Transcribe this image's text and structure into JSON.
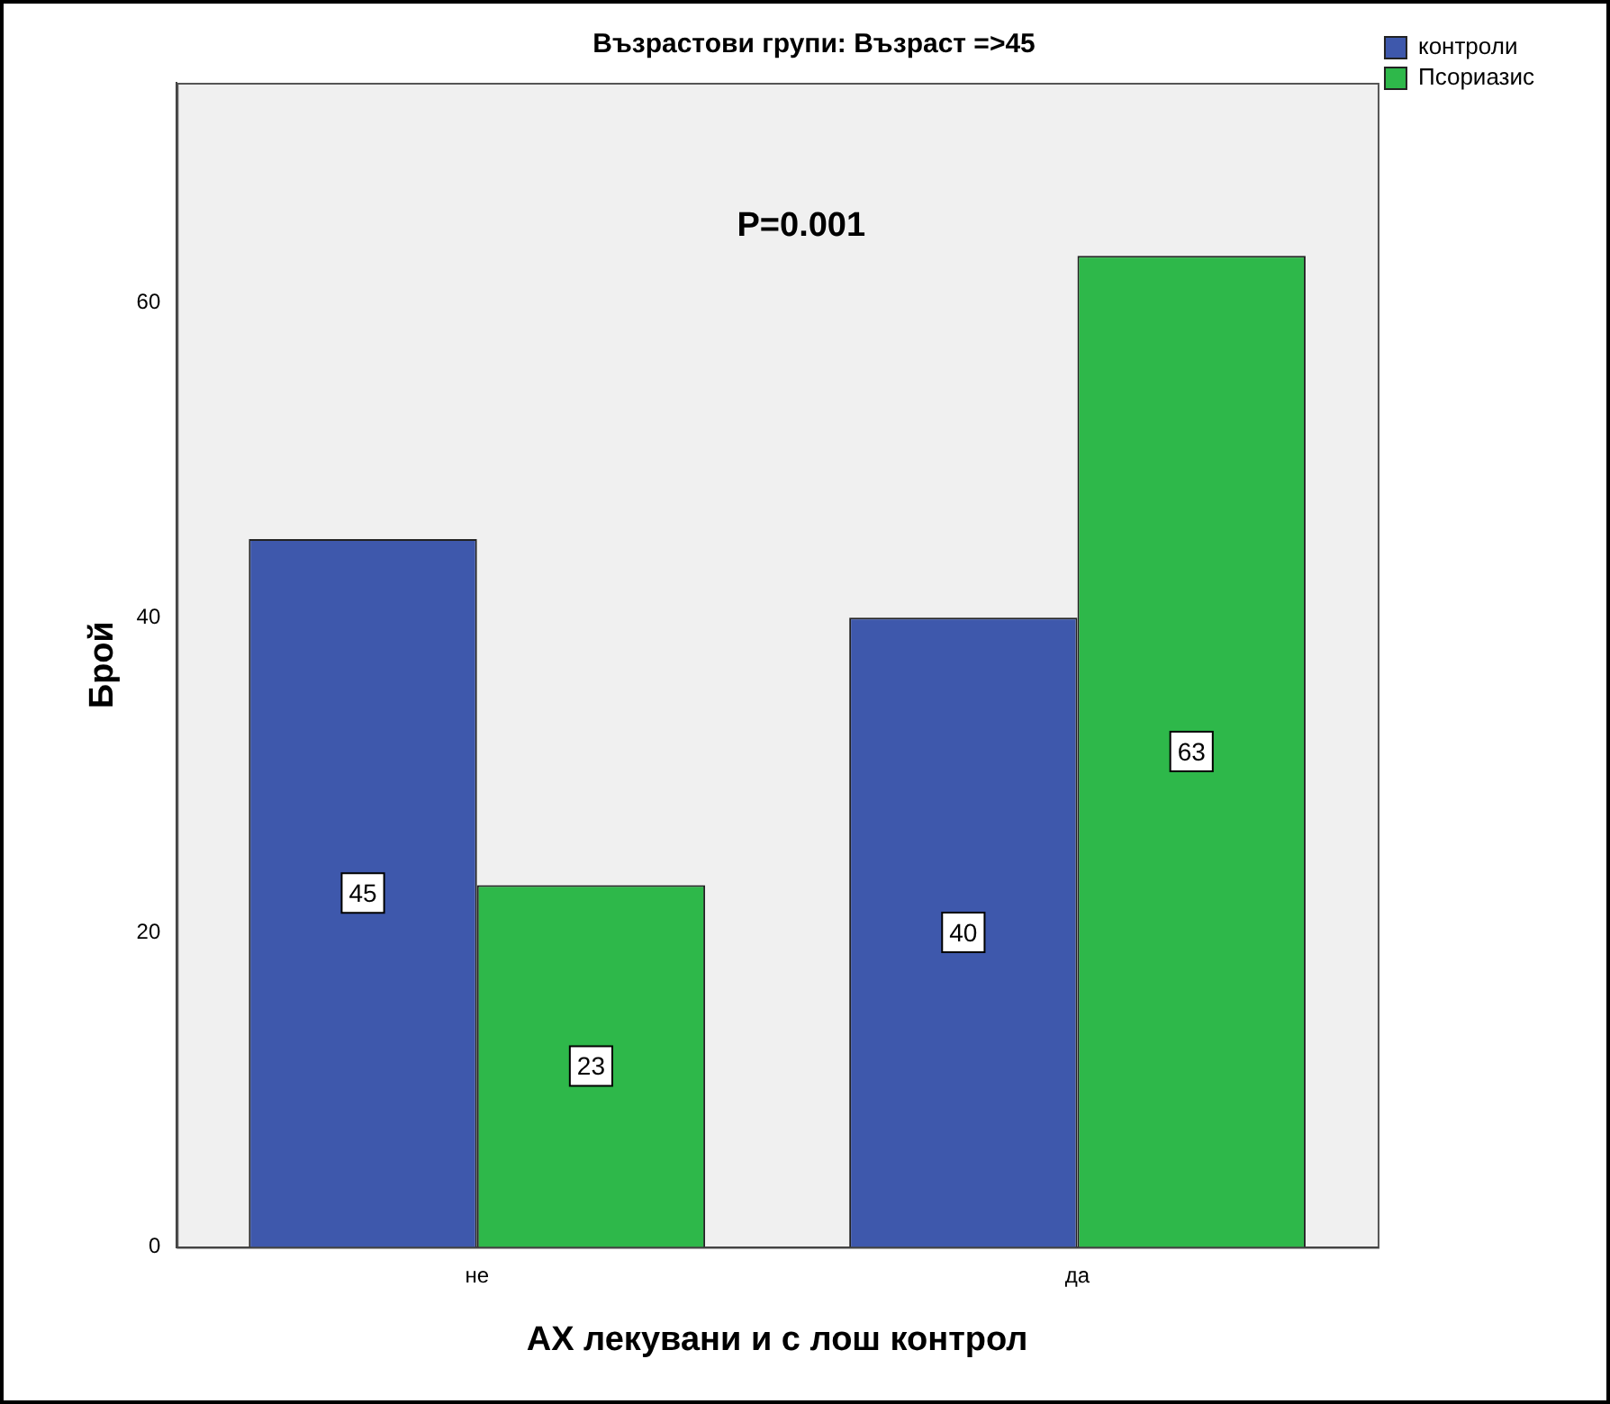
{
  "chart_data": {
    "type": "bar",
    "title": "Възрастови групи: Възраст =>45",
    "xlabel": "АХ лекувани и с лош контрол",
    "ylabel": "Брой",
    "categories": [
      "не",
      "да"
    ],
    "series": [
      {
        "name": "контроли",
        "color": "#3e58ac",
        "values": [
          45,
          40
        ]
      },
      {
        "name": "Псориазис",
        "color": "#2eb84a",
        "values": [
          23,
          63
        ]
      }
    ],
    "ylim": [
      0,
      74
    ],
    "yticks": [
      0,
      20,
      40,
      60
    ],
    "grid": false,
    "legend": "top right",
    "data_labels": true,
    "annotations": [
      "P=0.001"
    ]
  }
}
